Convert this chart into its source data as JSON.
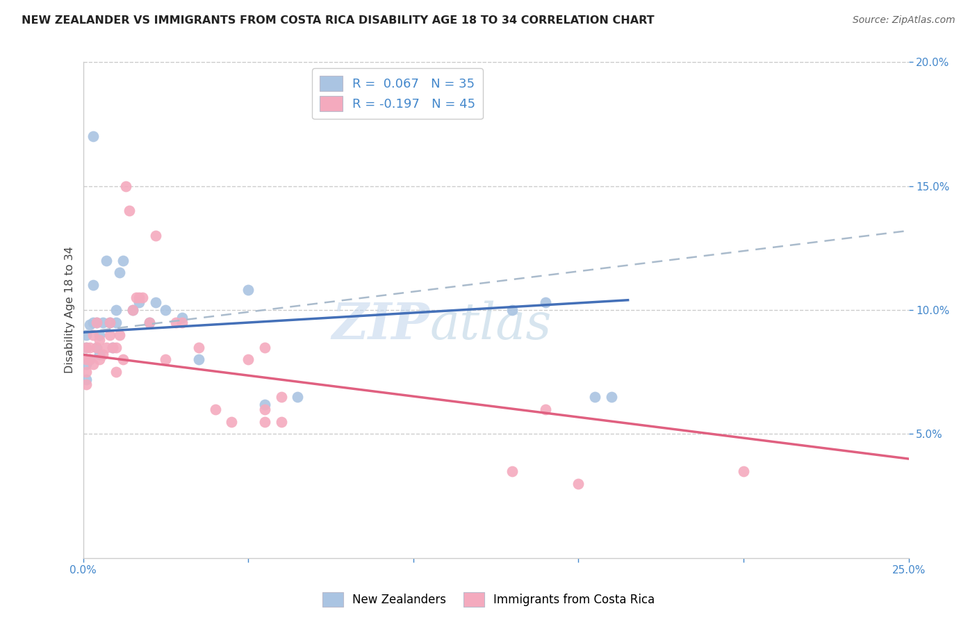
{
  "title": "NEW ZEALANDER VS IMMIGRANTS FROM COSTA RICA DISABILITY AGE 18 TO 34 CORRELATION CHART",
  "source": "Source: ZipAtlas.com",
  "ylabel": "Disability Age 18 to 34",
  "xlim": [
    0.0,
    0.25
  ],
  "ylim": [
    0.0,
    0.2
  ],
  "blue_R": "0.067",
  "blue_N": "35",
  "pink_R": "-0.197",
  "pink_N": "45",
  "blue_color": "#aac4e2",
  "pink_color": "#f4aabe",
  "blue_line_color": "#4470b8",
  "pink_line_color": "#e06080",
  "dash_color": "#aabbcc",
  "background_color": "#ffffff",
  "grid_color": "#cccccc",
  "tick_color": "#4488cc",
  "legend_label_blue": "New Zealanders",
  "legend_label_pink": "Immigrants from Costa Rica",
  "watermark_1": "ZIP",
  "watermark_2": "atlas",
  "blue_x": [
    0.001,
    0.001,
    0.001,
    0.001,
    0.002,
    0.002,
    0.003,
    0.003,
    0.004,
    0.004,
    0.005,
    0.005,
    0.006,
    0.007,
    0.008,
    0.009,
    0.01,
    0.01,
    0.011,
    0.012,
    0.015,
    0.017,
    0.02,
    0.022,
    0.025,
    0.03,
    0.035,
    0.05,
    0.055,
    0.065,
    0.13,
    0.14,
    0.155,
    0.16,
    0.003
  ],
  "blue_y": [
    0.09,
    0.085,
    0.078,
    0.072,
    0.094,
    0.08,
    0.095,
    0.11,
    0.085,
    0.095,
    0.09,
    0.082,
    0.095,
    0.12,
    0.095,
    0.085,
    0.1,
    0.095,
    0.115,
    0.12,
    0.1,
    0.103,
    0.095,
    0.103,
    0.1,
    0.097,
    0.08,
    0.108,
    0.062,
    0.065,
    0.1,
    0.103,
    0.065,
    0.065,
    0.17
  ],
  "pink_x": [
    0.001,
    0.001,
    0.001,
    0.001,
    0.002,
    0.002,
    0.003,
    0.003,
    0.004,
    0.004,
    0.005,
    0.005,
    0.006,
    0.007,
    0.008,
    0.008,
    0.009,
    0.01,
    0.01,
    0.011,
    0.012,
    0.013,
    0.014,
    0.015,
    0.016,
    0.017,
    0.018,
    0.02,
    0.022,
    0.025,
    0.028,
    0.03,
    0.035,
    0.04,
    0.045,
    0.05,
    0.055,
    0.06,
    0.13,
    0.15,
    0.055,
    0.06,
    0.14,
    0.055,
    0.2
  ],
  "pink_y": [
    0.085,
    0.08,
    0.075,
    0.07,
    0.08,
    0.085,
    0.078,
    0.09,
    0.085,
    0.095,
    0.08,
    0.088,
    0.082,
    0.085,
    0.09,
    0.095,
    0.085,
    0.085,
    0.075,
    0.09,
    0.08,
    0.15,
    0.14,
    0.1,
    0.105,
    0.105,
    0.105,
    0.095,
    0.13,
    0.08,
    0.095,
    0.095,
    0.085,
    0.06,
    0.055,
    0.08,
    0.055,
    0.055,
    0.035,
    0.03,
    0.06,
    0.065,
    0.06,
    0.085,
    0.035
  ],
  "blue_line_x0": 0.0,
  "blue_line_y0": 0.091,
  "blue_line_x1": 0.165,
  "blue_line_y1": 0.104,
  "dash_line_x0": 0.0,
  "dash_line_y0": 0.091,
  "dash_line_x1": 0.25,
  "dash_line_y1": 0.132,
  "pink_line_x0": 0.0,
  "pink_line_y0": 0.082,
  "pink_line_x1": 0.25,
  "pink_line_y1": 0.04
}
